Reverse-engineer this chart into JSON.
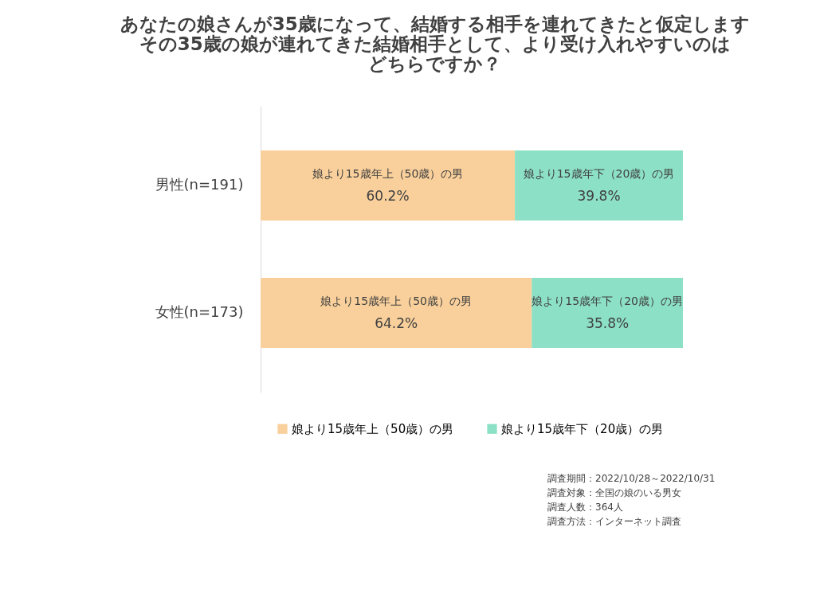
{
  "chart_data": {
    "type": "bar",
    "orientation": "horizontal",
    "stacked": true,
    "title": "あなたの娘さんが35歳になって、結婚する相手を連れてきたと仮定しますその35歳の娘が連れてきた結婚相手として、より受け入れやすいのはどちらですか？",
    "categories": [
      "男性(n=191)",
      "女性(n=173)"
    ],
    "series": [
      {
        "name": "娘より15歳年上（50歳）の男",
        "color": "#f9d09b",
        "values": [
          60.2,
          64.2
        ],
        "value_labels": [
          "60.2%",
          "64.2%"
        ]
      },
      {
        "name": "娘より15歳年下（20歳）の男",
        "color": "#8ce0c5",
        "values": [
          39.8,
          35.8
        ],
        "value_labels": [
          "39.8%",
          "35.8%"
        ]
      }
    ],
    "legend": "bottom",
    "annotations": [
      "調査期間：2022/10/28～2022/10/31",
      "調査対象：全国の娘のいる男女",
      "調査人数：364人",
      "調査方法：インターネット調査"
    ]
  }
}
